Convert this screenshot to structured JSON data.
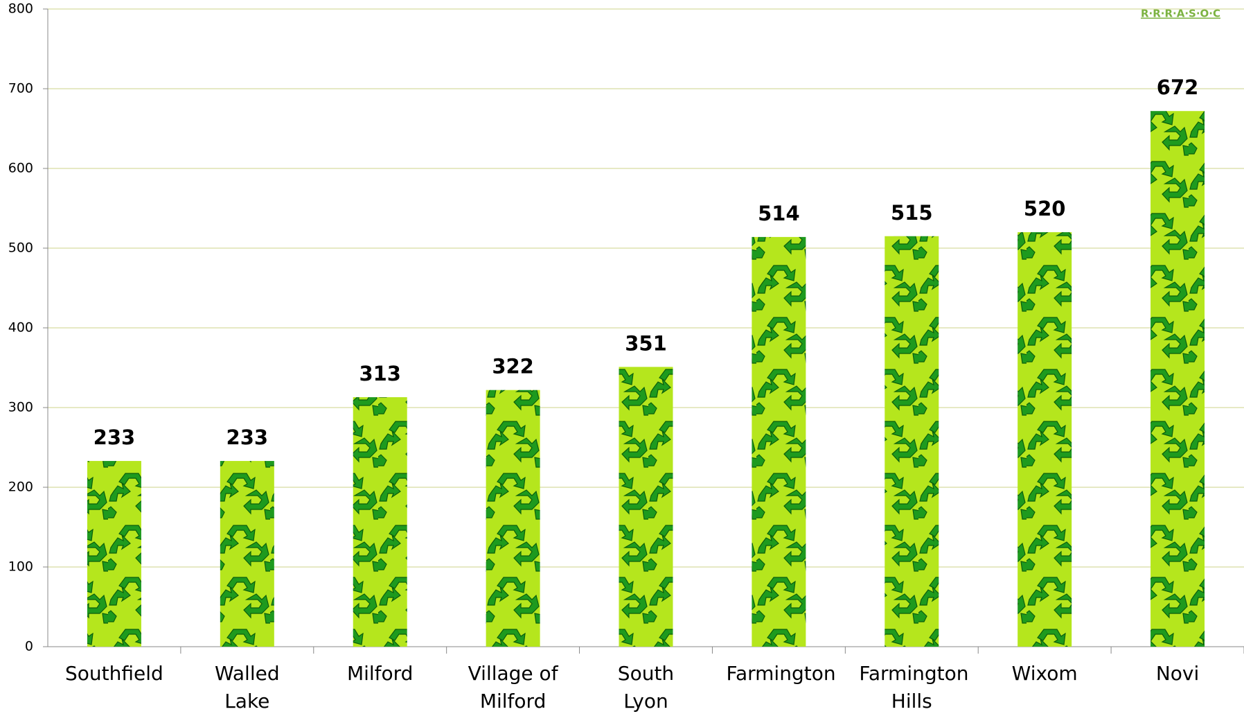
{
  "chart_data": {
    "type": "bar",
    "logo": "R·R·R·A·S·O·C",
    "categories": [
      "Southfield",
      "Walled Lake",
      "Milford",
      "Village of Milford",
      "South Lyon",
      "Farmington",
      "Farmington Hills",
      "Wixom",
      "Novi"
    ],
    "values": [
      233,
      233,
      313,
      322,
      351,
      514,
      515,
      520,
      672
    ],
    "color": "#b5e61d",
    "ylim": [
      0,
      800
    ],
    "yticks": [
      0,
      100,
      200,
      300,
      400,
      500,
      600,
      700,
      800
    ],
    "grid": true
  }
}
